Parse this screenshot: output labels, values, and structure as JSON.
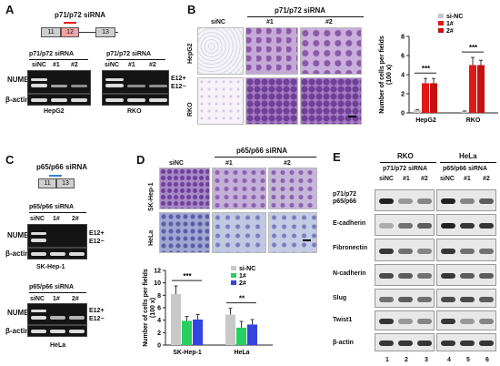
{
  "panels": {
    "A": "A",
    "B": "B",
    "C": "C",
    "D": "D",
    "E": "E"
  },
  "panelA": {
    "title": "p71/p72 siRNA",
    "exons": [
      "11",
      "12",
      "13"
    ],
    "gel_title": "p71/p72 siRNA",
    "lanes": [
      "siNC",
      "#1",
      "#2"
    ],
    "row_labels": [
      "NUMB",
      "β-actin"
    ],
    "band_labels": [
      "E12+",
      "E12−"
    ],
    "cell_lines": [
      "HepG2",
      "RKO"
    ]
  },
  "panelB": {
    "header": "p71/p72 siRNA",
    "cols": [
      "siNC",
      "#1",
      "#2"
    ],
    "rows": [
      "HepG2",
      "RKO"
    ]
  },
  "panelC": {
    "title": "p65/p66 siRNA",
    "exons": [
      "11",
      "13"
    ],
    "gel_title": "p65/p66 siRNA",
    "lanes": [
      "siNC",
      "1#",
      "2#"
    ],
    "row_labels": [
      "NUMB",
      "β-actin"
    ],
    "band_labels": [
      "E12+",
      "E12−"
    ],
    "cell_lines": [
      "SK-Hep-1",
      "HeLa"
    ]
  },
  "panelD": {
    "header": "p65/p66 siRNA",
    "cols": [
      "siNC",
      "#1",
      "#2"
    ],
    "rows": [
      "SK-Hep-1",
      "HeLa"
    ]
  },
  "panelE": {
    "groups": [
      {
        "cell": "RKO",
        "sirna": "p71/p72 siRNA",
        "lanes": [
          "siNC",
          "#1",
          "#2"
        ]
      },
      {
        "cell": "HeLa",
        "sirna": "p65/p66 siRNA",
        "lanes": [
          "siNC",
          "#1",
          "#2"
        ]
      }
    ],
    "rows": [
      "p71/p72\np65/p66",
      "E-cadherin",
      "Fibronectin",
      "N-cadherin",
      "Slug",
      "Twist1",
      "β-actin"
    ],
    "lane_numbers": [
      "1",
      "2",
      "3",
      "4",
      "5",
      "6"
    ]
  },
  "chart_data": [
    {
      "type": "bar",
      "categories": [
        "HepG2",
        "RKO"
      ],
      "series": [
        {
          "name": "si-NC",
          "values": [
            0.3,
            0.15
          ],
          "errors": [
            0.05,
            0.05
          ],
          "color": "#c8c8c8"
        },
        {
          "name": "1#",
          "values": [
            3.1,
            5.0
          ],
          "errors": [
            0.5,
            0.8
          ],
          "color": "#e01818"
        },
        {
          "name": "2#",
          "values": [
            3.1,
            5.0
          ],
          "errors": [
            0.5,
            0.5
          ],
          "color": "#c41010"
        }
      ],
      "ylabel": "Number of cells per fields (100 x)",
      "ylim": [
        0,
        8
      ],
      "yticks": [
        0,
        2,
        4,
        6,
        8
      ],
      "significance": [
        "***",
        "***"
      ]
    },
    {
      "type": "bar",
      "categories": [
        "SK-Hep-1",
        "HeLa"
      ],
      "series": [
        {
          "name": "si-NC",
          "values": [
            8.2,
            4.9
          ],
          "errors": [
            1.3,
            1.0
          ],
          "color": "#c8c8c8"
        },
        {
          "name": "1#",
          "values": [
            3.9,
            2.8
          ],
          "errors": [
            0.7,
            1.0
          ],
          "color": "#26d060"
        },
        {
          "name": "2#",
          "values": [
            4.1,
            3.3
          ],
          "errors": [
            0.8,
            0.8
          ],
          "color": "#3344e0"
        }
      ],
      "ylabel": "Number of cells per fields (100 x)",
      "ylim": [
        0,
        12
      ],
      "yticks": [
        0,
        2,
        4,
        6,
        8,
        10,
        12
      ],
      "significance": [
        "***",
        "**"
      ]
    }
  ]
}
